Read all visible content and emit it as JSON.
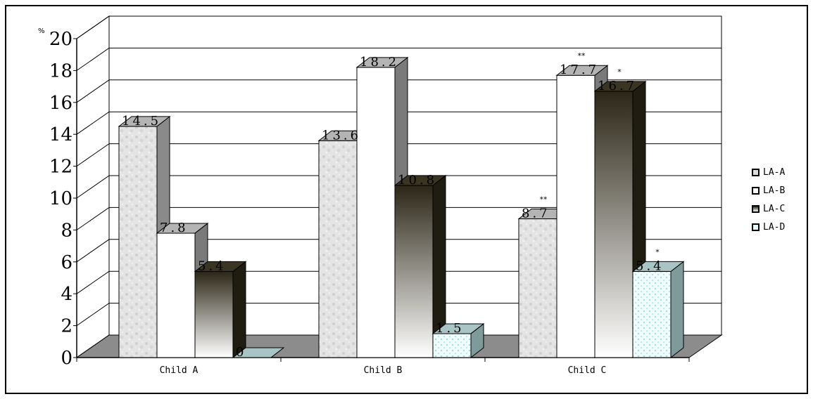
{
  "chart_data": {
    "type": "bar",
    "title": "",
    "unit_label": "%",
    "xlabel": "",
    "ylabel": "",
    "ylim": [
      0,
      20
    ],
    "yticks": [
      0,
      2,
      4,
      6,
      8,
      10,
      12,
      14,
      16,
      18,
      20
    ],
    "grid": true,
    "legend_position": "right",
    "categories": [
      "Child A",
      "Child B",
      "Child C"
    ],
    "series": [
      {
        "name": "LA-A",
        "values": [
          14.5,
          13.6,
          8.7
        ],
        "labels": [
          "14.5",
          "13.6",
          "8.7"
        ]
      },
      {
        "name": "LA-B",
        "values": [
          7.8,
          18.2,
          17.7
        ],
        "labels": [
          "7.8",
          "18.2",
          "17.7"
        ]
      },
      {
        "name": "LA-C",
        "values": [
          5.4,
          10.8,
          16.7
        ],
        "labels": [
          "5.4",
          "10.8",
          "16.7"
        ]
      },
      {
        "name": "LA-D",
        "values": [
          0,
          1.5,
          5.4
        ],
        "labels": [
          "0",
          "1.5",
          "5.4"
        ]
      }
    ],
    "annotations": [
      {
        "category": 2,
        "series": 0,
        "text": "**"
      },
      {
        "category": 2,
        "series": 1,
        "text": "**"
      },
      {
        "category": 2,
        "series": 2,
        "text": "*"
      },
      {
        "category": 2,
        "series": 3,
        "text": "*"
      }
    ]
  }
}
